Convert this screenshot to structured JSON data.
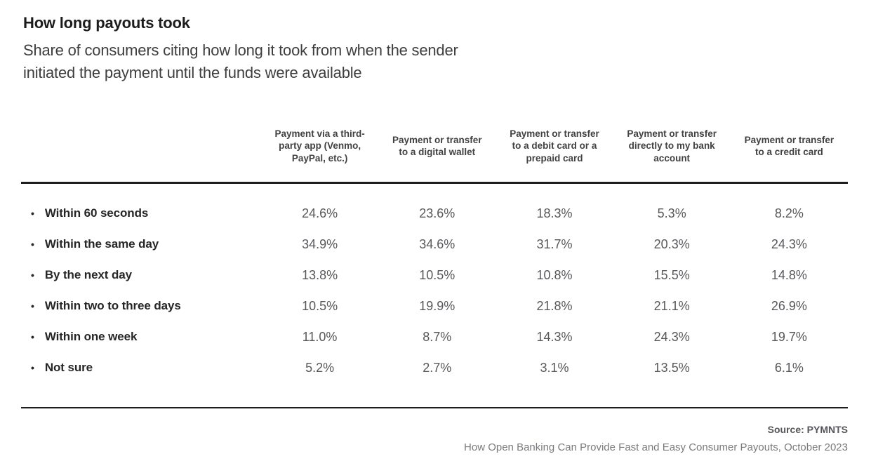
{
  "header": {
    "title": "How long payouts took",
    "subtitle_line1": "Share of consumers citing how long it took from when the sender",
    "subtitle_line2": "initiated the payment until the funds were available"
  },
  "chart_data": {
    "type": "table",
    "title": "How long payouts took",
    "subtitle": "Share of consumers citing how long it took from when the sender initiated the payment until the funds were available",
    "unit": "percent of consumers",
    "columns": [
      "Payment via a third-party app (Venmo, PayPal, etc.)",
      "Payment or transfer to a digital wallet",
      "Payment or transfer to a debit card or a prepaid card",
      "Payment or transfer directly to my bank account",
      "Payment or transfer to a credit card"
    ],
    "rows": [
      {
        "label": "Within 60 seconds",
        "values": [
          "24.6%",
          "23.6%",
          "18.3%",
          "5.3%",
          "8.2%"
        ]
      },
      {
        "label": "Within the same day",
        "values": [
          "34.9%",
          "34.6%",
          "31.7%",
          "20.3%",
          "24.3%"
        ]
      },
      {
        "label": "By the next day",
        "values": [
          "13.8%",
          "10.5%",
          "10.8%",
          "15.5%",
          "14.8%"
        ]
      },
      {
        "label": "Within two to three days",
        "values": [
          "10.5%",
          "19.9%",
          "21.8%",
          "21.1%",
          "26.9%"
        ]
      },
      {
        "label": "Within one week",
        "values": [
          "11.0%",
          "8.7%",
          "14.3%",
          "24.3%",
          "19.7%"
        ]
      },
      {
        "label": "Not sure",
        "values": [
          "5.2%",
          "2.7%",
          "3.1%",
          "13.5%",
          "6.1%"
        ]
      }
    ]
  },
  "footer": {
    "source": "Source: PYMNTS",
    "report": "How Open Banking Can Provide Fast and Easy Consumer Payouts, October 2023"
  },
  "colors": {
    "background": "#ffffff",
    "title_text": "#1c1c1e",
    "subtitle_text": "#3e3e40",
    "header_text": "#414042",
    "row_label_text": "#262628",
    "value_text": "#57585b",
    "rule": "#1e1e20",
    "source_text": "#545558",
    "report_text": "#7a7b7e"
  }
}
